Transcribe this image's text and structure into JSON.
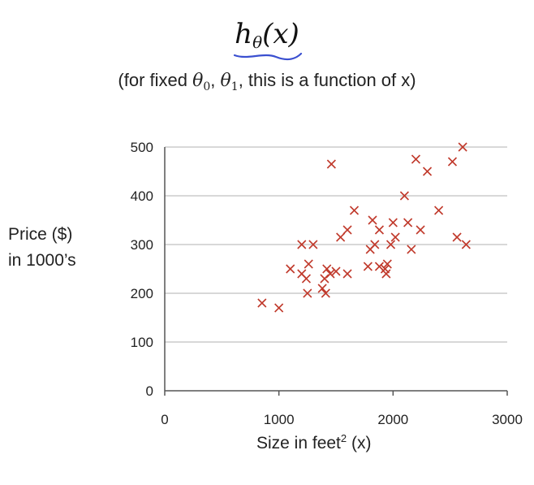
{
  "header": {
    "hypothesis_base": "h",
    "hypothesis_sub": "θ",
    "hypothesis_arg": "(x)",
    "subtitle_prefix": "(for fixed ",
    "theta0": "θ",
    "theta0_sub": "0",
    "sep": ", ",
    "theta1": "θ",
    "theta1_sub": "1",
    "subtitle_suffix": ", this is a function of x)"
  },
  "colors": {
    "marker": "#c0392b",
    "grid": "#cccccc",
    "underline": "#3a4fd0",
    "axis": "#555555"
  },
  "chart_data": {
    "type": "scatter",
    "ylabel_line1": "Price ($)",
    "ylabel_line2": "in 1000’s",
    "xlabel_text": "Size in feet",
    "xlabel_sup": "2",
    "xlabel_suffix": " (x)",
    "xlim": [
      0,
      3000
    ],
    "ylim": [
      0,
      500
    ],
    "x_ticks": [
      0,
      1000,
      2000,
      3000
    ],
    "y_ticks": [
      0,
      100,
      200,
      300,
      400,
      500
    ],
    "grid": "horizontal",
    "marker": "x",
    "points": [
      [
        852,
        180
      ],
      [
        1000,
        170
      ],
      [
        1100,
        250
      ],
      [
        1200,
        300
      ],
      [
        1200,
        240
      ],
      [
        1240,
        230
      ],
      [
        1250,
        200
      ],
      [
        1260,
        260
      ],
      [
        1300,
        300
      ],
      [
        1380,
        210
      ],
      [
        1400,
        230
      ],
      [
        1410,
        200
      ],
      [
        1420,
        250
      ],
      [
        1450,
        240
      ],
      [
        1460,
        465
      ],
      [
        1500,
        245
      ],
      [
        1540,
        315
      ],
      [
        1600,
        330
      ],
      [
        1600,
        240
      ],
      [
        1660,
        370
      ],
      [
        1780,
        255
      ],
      [
        1800,
        290
      ],
      [
        1820,
        350
      ],
      [
        1840,
        300
      ],
      [
        1880,
        255
      ],
      [
        1880,
        330
      ],
      [
        1930,
        250
      ],
      [
        1940,
        240
      ],
      [
        1950,
        260
      ],
      [
        1980,
        300
      ],
      [
        2000,
        345
      ],
      [
        2020,
        315
      ],
      [
        2100,
        400
      ],
      [
        2130,
        345
      ],
      [
        2160,
        290
      ],
      [
        2200,
        475
      ],
      [
        2240,
        330
      ],
      [
        2300,
        450
      ],
      [
        2400,
        370
      ],
      [
        2520,
        470
      ],
      [
        2560,
        315
      ],
      [
        2610,
        500
      ],
      [
        2640,
        300
      ]
    ]
  }
}
